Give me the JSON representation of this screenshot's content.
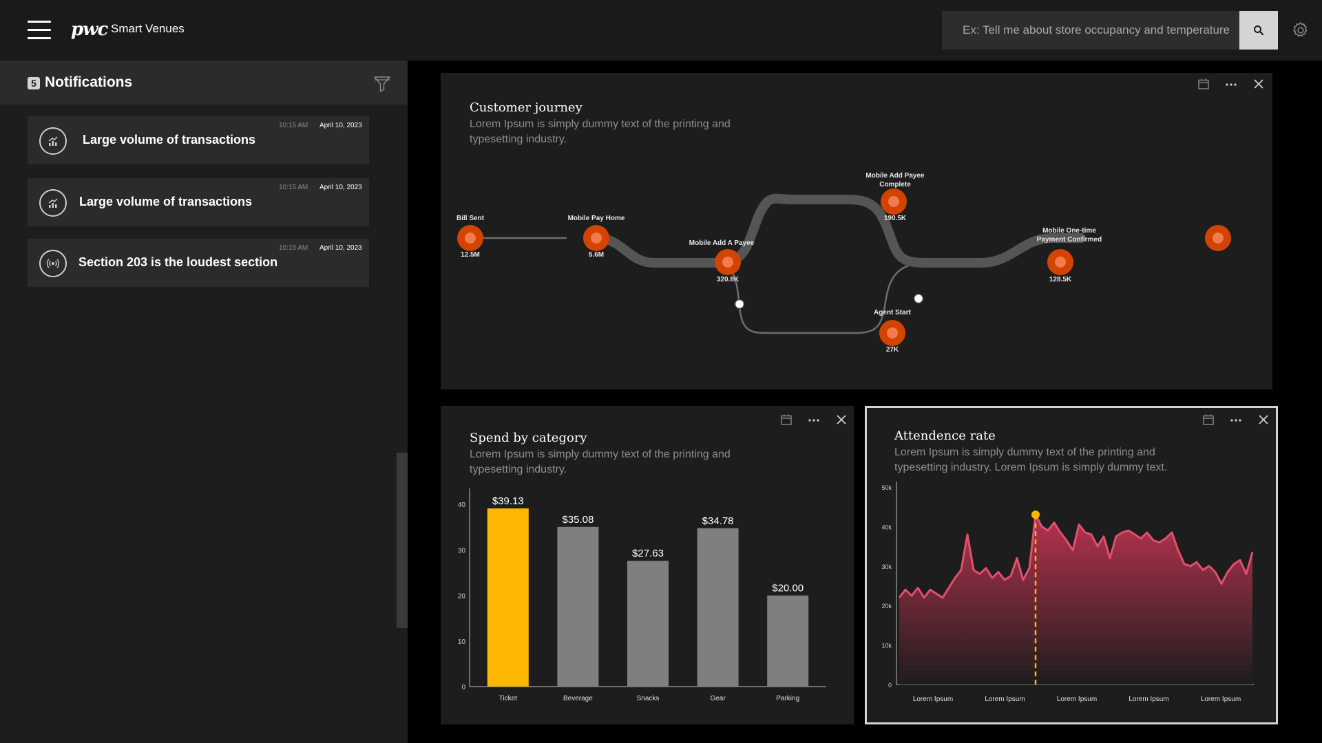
{
  "header": {
    "logo": "pwc",
    "app_name": "Smart Venues",
    "search_placeholder": "Ex: Tell me about store occupancy and temperature"
  },
  "notifications": {
    "count": "5",
    "title": "Notifications",
    "items": [
      {
        "icon": "chart-up-icon",
        "text": "Large volume of transactions",
        "time": "10:15 AM",
        "date": "April 10, 2023"
      },
      {
        "icon": "chart-up-icon",
        "text": "Large volume of transactions",
        "time": "10:15 AM",
        "date": "April 10, 2023"
      },
      {
        "icon": "sound-icon",
        "text": "Section 203 is the loudest section",
        "time": "10:15 AM",
        "date": "April 10, 2023"
      }
    ]
  },
  "journey": {
    "title": "Customer journey",
    "description_lines": [
      "Lorem Ipsum is simply dummy text of the printing and",
      "typesetting industry."
    ],
    "nodes": [
      {
        "label_lines": [
          "Bill Sent"
        ],
        "value": "12.5M"
      },
      {
        "label_lines": [
          "Mobile Pay Home"
        ],
        "value": "5.6M"
      },
      {
        "label_lines": [
          "Mobile Add A Payee"
        ],
        "value": "320.8K"
      },
      {
        "label_lines": [
          "Mobile Add Payee",
          "Complete"
        ],
        "value": "190.5K"
      },
      {
        "label_lines": [
          "Agent Start"
        ],
        "value": "27K"
      },
      {
        "label_lines": [
          "Mobile One-time",
          "Payment Confirmed"
        ],
        "value": "128.5K"
      },
      {
        "label_lines": [],
        "value": ""
      }
    ]
  },
  "spend": {
    "title": "Spend by category",
    "description_lines": [
      "Lorem Ipsum is simply dummy text of the printing and",
      "typesetting industry."
    ]
  },
  "attendance": {
    "title": "Attendence rate",
    "description_lines": [
      "Lorem Ipsum is simply dummy text of the printing and",
      "typesetting industry. Lorem Ipsum is simply dummy text."
    ]
  },
  "chart_data": [
    {
      "type": "bar",
      "categories": [
        "Ticket",
        "Beverage",
        "Snacks",
        "Gear",
        "Parking"
      ],
      "values": [
        39.13,
        35.08,
        27.63,
        34.78,
        20.0
      ],
      "data_labels": [
        "$39.13",
        "$35.08",
        "$27.63",
        "$34.78",
        "$20.00"
      ],
      "highlight_index": 0,
      "y_ticks": [
        0,
        10,
        20,
        30,
        40
      ],
      "ylim": [
        0,
        42
      ],
      "colors": {
        "highlight": "#ffb600",
        "default": "#7f7f7f"
      }
    },
    {
      "type": "area",
      "x_labels": [
        "Lorem Ipsum",
        "Lorem Ipsum",
        "Lorem Ipsum",
        "Lorem Ipsum",
        "Lorem Ipsum"
      ],
      "y_ticks": [
        "0",
        "10k",
        "20k",
        "30k",
        "40k",
        "50k"
      ],
      "ylim": [
        0,
        50000
      ],
      "values": [
        22000,
        24000,
        22500,
        24500,
        22000,
        24000,
        23000,
        22000,
        24500,
        27000,
        29000,
        38000,
        29000,
        28000,
        29500,
        27000,
        28500,
        26500,
        27500,
        32000,
        26500,
        29500,
        43000,
        40000,
        39000,
        41000,
        38500,
        36500,
        34000,
        40500,
        38500,
        38000,
        35000,
        37500,
        32000,
        37500,
        38500,
        39000,
        38000,
        37000,
        38500,
        36500,
        36000,
        37000,
        38500,
        34000,
        30500,
        30000,
        31000,
        29000,
        30000,
        28500,
        25500,
        28500,
        30500,
        31500,
        28000,
        33500
      ],
      "marker_index": 22,
      "colors": {
        "line": "#e0506e",
        "fill_top": "#b8324f",
        "marker": "#ffb600"
      }
    }
  ]
}
